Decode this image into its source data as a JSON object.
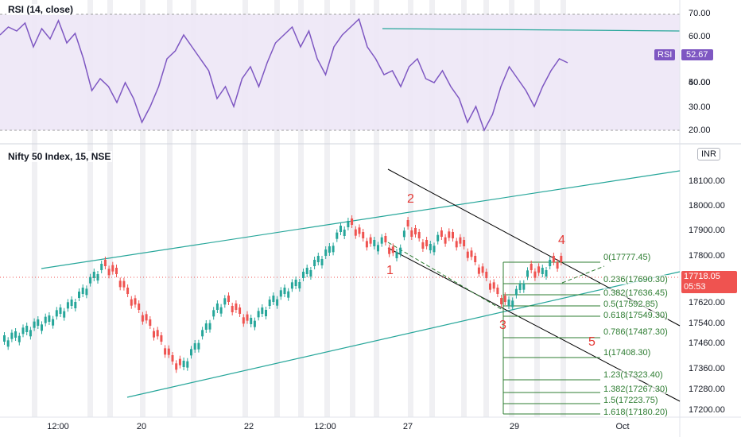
{
  "rsi_pane": {
    "label": "RSI (14, close)",
    "axis_ticks": [
      "70.00",
      "60.00",
      "50.00",
      "40.00",
      "30.00",
      "20.00"
    ],
    "badge_name": "RSI",
    "badge_value": "52.67",
    "colors": {
      "line": "#7e57c2",
      "band": "#ede7f6",
      "levels": "#9e9e9e",
      "trend": "#26a69a"
    }
  },
  "price_pane": {
    "label": "Nifty 50 Index, 15, NSE",
    "currency": "INR",
    "axis_ticks": [
      "18100.00",
      "18000.00",
      "17900.00",
      "17800.00",
      "17620.00",
      "17540.00",
      "17460.00",
      "17360.00",
      "17280.00",
      "17200.00"
    ],
    "price_badge": "17718.05",
    "countdown": "05:53",
    "colors": {
      "up": "#26a69a",
      "down": "#ef5350",
      "channel": "#26a69a",
      "down_channel": "#000000",
      "fib": "#2e7d32",
      "wave": "#e53935"
    }
  },
  "x_axis": [
    "12:00",
    "20",
    "22",
    "12:00",
    "27",
    "29",
    "Oct"
  ],
  "wave_labels": [
    "1",
    "2",
    "3",
    "4",
    "5"
  ],
  "fib_levels": [
    "0(17777.45)",
    "0.236(17690.30)",
    "0.382(17636.45)",
    "0.5(17592.85)",
    "0.618(17549.30)",
    "0.786(17487.30)",
    "1(17408.30)",
    "1.23(17323.40)",
    "1.382(17267.30)",
    "1.5(17223.75)",
    "1.618(17180.20)"
  ]
}
